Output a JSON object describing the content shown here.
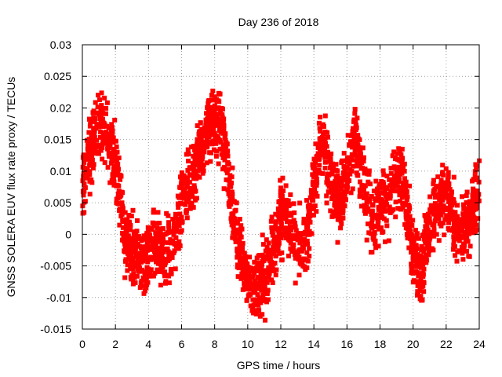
{
  "chart_data": {
    "type": "scatter",
    "title": "Day 236 of 2018",
    "xlabel": "GPS time / hours",
    "ylabel": "GNSS SOLERA EUV flux rate proxy / TECUs",
    "xlim": [
      0,
      24
    ],
    "ylim": [
      -0.015,
      0.03
    ],
    "xticks": [
      "0",
      "2",
      "4",
      "6",
      "8",
      "10",
      "12",
      "14",
      "16",
      "18",
      "20",
      "22",
      "24"
    ],
    "yticks": [
      "-0.015",
      "-0.01",
      "-0.005",
      "0",
      "0.005",
      "0.01",
      "0.015",
      "0.02",
      "0.025",
      "0.03"
    ],
    "grid": true,
    "marker": "square",
    "color": "#ff0000",
    "series_trend": {
      "x": [
        0.0,
        0.5,
        1.0,
        1.5,
        2.0,
        2.5,
        3.0,
        3.5,
        4.0,
        4.5,
        5.0,
        5.5,
        6.0,
        6.5,
        7.0,
        7.5,
        8.0,
        8.5,
        9.0,
        9.5,
        10.0,
        10.5,
        11.0,
        11.5,
        12.0,
        12.5,
        13.0,
        13.5,
        14.0,
        14.5,
        15.0,
        15.5,
        16.0,
        16.5,
        17.0,
        17.5,
        18.0,
        18.5,
        19.0,
        19.5,
        20.0,
        20.5,
        21.0,
        21.5,
        22.0,
        22.5,
        23.0,
        23.5,
        24.0
      ],
      "y": [
        0.007,
        0.013,
        0.017,
        0.016,
        0.011,
        0.001,
        -0.003,
        -0.004,
        -0.003,
        -0.002,
        -0.003,
        -0.001,
        0.005,
        0.008,
        0.012,
        0.016,
        0.019,
        0.016,
        0.006,
        -0.002,
        -0.007,
        -0.008,
        -0.007,
        -0.003,
        0.003,
        0.002,
        -0.003,
        -0.002,
        0.008,
        0.016,
        0.009,
        0.004,
        0.01,
        0.015,
        0.008,
        0.003,
        0.004,
        0.006,
        0.01,
        0.006,
        -0.003,
        -0.006,
        0.002,
        0.005,
        0.006,
        0.002,
        0.0,
        0.003,
        0.008
      ]
    }
  }
}
